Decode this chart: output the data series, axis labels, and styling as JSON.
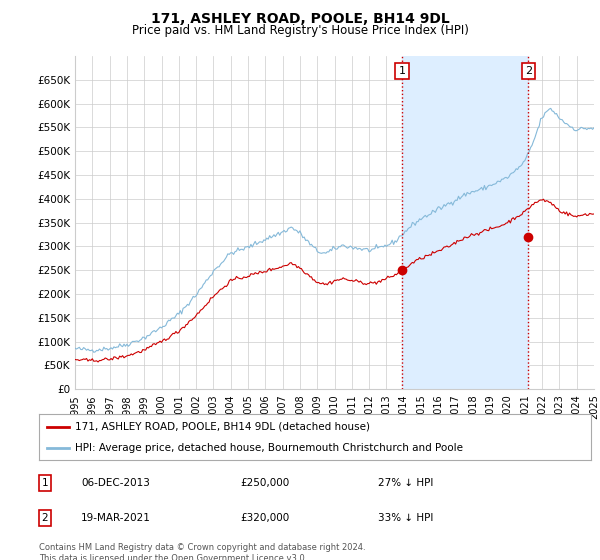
{
  "title": "171, ASHLEY ROAD, POOLE, BH14 9DL",
  "subtitle": "Price paid vs. HM Land Registry's House Price Index (HPI)",
  "legend_line1": "171, ASHLEY ROAD, POOLE, BH14 9DL (detached house)",
  "legend_line2": "HPI: Average price, detached house, Bournemouth Christchurch and Poole",
  "annotation1_date": "06-DEC-2013",
  "annotation1_price": "£250,000",
  "annotation1_pct": "27% ↓ HPI",
  "annotation2_date": "19-MAR-2021",
  "annotation2_price": "£320,000",
  "annotation2_pct": "33% ↓ HPI",
  "footnote": "Contains HM Land Registry data © Crown copyright and database right 2024.\nThis data is licensed under the Open Government Licence v3.0.",
  "hpi_color": "#85b9d9",
  "price_color": "#cc0000",
  "shade_color": "#ddeeff",
  "marker_color": "#cc0000",
  "vline_color": "#cc0000",
  "background_color": "#ffffff",
  "grid_color": "#cccccc",
  "ylim_min": 0,
  "ylim_max": 700000,
  "yticks": [
    0,
    50000,
    100000,
    150000,
    200000,
    250000,
    300000,
    350000,
    400000,
    450000,
    500000,
    550000,
    600000,
    650000
  ],
  "sale1_x": 2013.917,
  "sale1_y": 250000,
  "sale2_x": 2021.208,
  "sale2_y": 320000,
  "xmin": 1995,
  "xmax": 2025
}
